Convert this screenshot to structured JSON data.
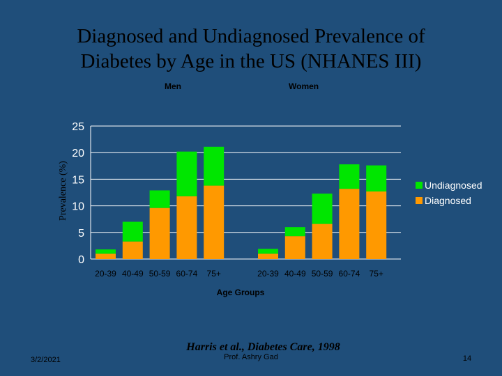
{
  "slide": {
    "title_line1": "Diagnosed and Undiagnosed Prevalence of",
    "title_line2": "Diabetes by Age in the US (NHANES III)",
    "date": "3/2/2021",
    "citation": "Harris et al., Diabetes Care, 1998",
    "author": "Prof. Ashry Gad",
    "page_number": "14"
  },
  "colors": {
    "background": "#1f4e7a",
    "diagnosed": "#ff9900",
    "undiagnosed": "#00e600",
    "axis": "#ffffff",
    "title_text": "#000000"
  },
  "chart_data": {
    "type": "bar",
    "stacked": true,
    "groups": [
      "Men",
      "Women"
    ],
    "categories": [
      "20-39",
      "40-49",
      "50-59",
      "60-74",
      "75+"
    ],
    "series": [
      {
        "name": "Diagnosed",
        "color": "#ff9900",
        "values": {
          "Men": [
            1.0,
            3.3,
            9.6,
            11.8,
            13.8
          ],
          "Women": [
            1.0,
            4.3,
            6.6,
            13.2,
            12.7
          ]
        }
      },
      {
        "name": "Undiagnosed",
        "color": "#00e600",
        "values": {
          "Men": [
            0.8,
            3.7,
            3.3,
            8.4,
            7.3
          ],
          "Women": [
            0.9,
            1.7,
            5.7,
            4.6,
            4.9
          ]
        }
      }
    ],
    "legend": [
      "Undiagnosed",
      "Diagnosed"
    ],
    "legend_position": "right",
    "xlabel": "Age Groups",
    "ylabel": "Prevalence (%)",
    "ylim": [
      0,
      25
    ],
    "yticks": [
      0,
      5,
      10,
      15,
      20,
      25
    ],
    "grid": true
  }
}
